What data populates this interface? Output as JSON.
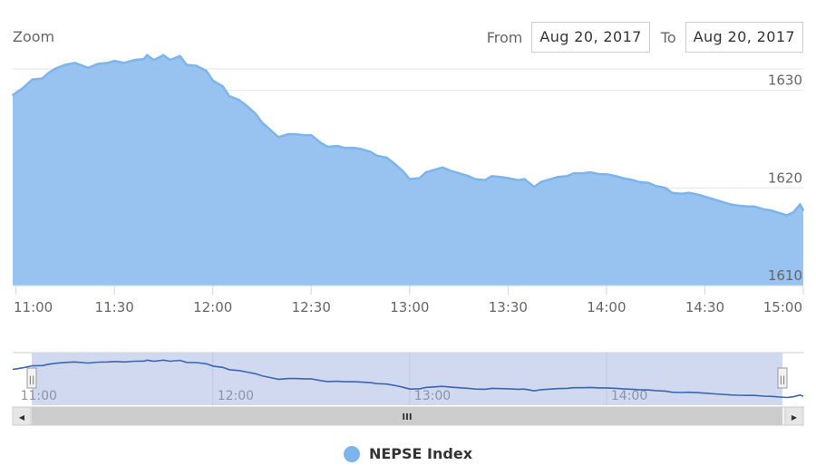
{
  "toolbar": {
    "zoom_label": "Zoom",
    "from_label": "From",
    "from_value": "Aug 20, 2017",
    "to_label": "To",
    "to_value": "Aug 20, 2017"
  },
  "colors": {
    "series_fill": "#98c3f0",
    "series_line": "#7cb5ec",
    "navigator_fill": "#d0d9ef",
    "navigator_line": "#3a66b6",
    "grid": "#e6e6e6",
    "axis_text": "#666666"
  },
  "chart_data": {
    "type": "area",
    "title": "",
    "xlabel": "",
    "ylabel": "",
    "xlim": [
      "10:59",
      "15:00"
    ],
    "ylim": [
      1610,
      1632
    ],
    "grid": true,
    "legend_position": "bottom-center",
    "y_ticks": [
      1610,
      1620,
      1630
    ],
    "x_ticks": [
      "11:00",
      "11:30",
      "12:00",
      "12:30",
      "13:00",
      "13:30",
      "14:00",
      "14:30",
      "15:00"
    ],
    "navigator_x_ticks": [
      "11:00",
      "12:00",
      "13:00",
      "14:00"
    ],
    "series": [
      {
        "name": "NEPSE Index",
        "x": [
          "10:59",
          "11:02",
          "11:05",
          "11:08",
          "11:10",
          "11:12",
          "11:15",
          "11:18",
          "11:22",
          "11:25",
          "11:28",
          "11:30",
          "11:33",
          "11:36",
          "11:39",
          "11:40",
          "11:42",
          "11:45",
          "11:47",
          "11:50",
          "11:52",
          "11:55",
          "11:58",
          "12:00",
          "12:03",
          "12:05",
          "12:08",
          "12:10",
          "12:13",
          "12:15",
          "12:18",
          "12:20",
          "12:23",
          "12:25",
          "12:28",
          "12:30",
          "12:33",
          "12:35",
          "12:38",
          "12:40",
          "12:43",
          "12:45",
          "12:48",
          "12:50",
          "12:53",
          "12:55",
          "12:58",
          "13:00",
          "13:03",
          "13:05",
          "13:08",
          "13:10",
          "13:13",
          "13:15",
          "13:18",
          "13:20",
          "13:23",
          "13:25",
          "13:28",
          "13:30",
          "13:33",
          "13:35",
          "13:38",
          "13:40",
          "13:43",
          "13:45",
          "13:48",
          "13:50",
          "13:53",
          "13:55",
          "13:58",
          "14:00",
          "14:03",
          "14:05",
          "14:08",
          "14:10",
          "14:13",
          "14:15",
          "14:18",
          "14:20",
          "14:23",
          "14:25",
          "14:28",
          "14:30",
          "14:33",
          "14:35",
          "14:38",
          "14:40",
          "14:43",
          "14:45",
          "14:48",
          "14:50",
          "14:53",
          "14:55",
          "14:57",
          "14:58",
          "14:59",
          "15:00"
        ],
        "values": [
          1629.5,
          1630.2,
          1631.1,
          1631.2,
          1631.8,
          1632.2,
          1632.6,
          1632.8,
          1632.3,
          1632.7,
          1632.8,
          1633.0,
          1632.8,
          1633.1,
          1633.2,
          1633.6,
          1633.1,
          1633.6,
          1633.1,
          1633.5,
          1632.6,
          1632.5,
          1632.0,
          1631.0,
          1630.4,
          1629.4,
          1629.0,
          1628.5,
          1627.6,
          1626.7,
          1625.8,
          1625.2,
          1625.5,
          1625.5,
          1625.4,
          1625.4,
          1624.6,
          1624.2,
          1624.3,
          1624.1,
          1624.1,
          1624.0,
          1623.7,
          1623.3,
          1623.1,
          1622.6,
          1621.7,
          1620.9,
          1621.0,
          1621.6,
          1621.9,
          1622.1,
          1621.7,
          1621.5,
          1621.2,
          1620.9,
          1620.8,
          1621.2,
          1621.1,
          1621.0,
          1620.8,
          1620.9,
          1620.1,
          1620.6,
          1620.9,
          1621.1,
          1621.2,
          1621.5,
          1621.5,
          1621.6,
          1621.4,
          1621.4,
          1621.2,
          1621.0,
          1620.8,
          1620.6,
          1620.5,
          1620.2,
          1620.0,
          1619.5,
          1619.4,
          1619.5,
          1619.3,
          1619.1,
          1618.8,
          1618.6,
          1618.3,
          1618.2,
          1618.1,
          1618.1,
          1617.8,
          1617.7,
          1617.4,
          1617.2,
          1617.5,
          1617.9,
          1618.3,
          1617.7
        ]
      }
    ]
  },
  "navigator": {
    "scrollbar_thumb_glyph": "III",
    "left_arrow_glyph": "◀",
    "right_arrow_glyph": "▶",
    "handle_glyph": "||"
  }
}
